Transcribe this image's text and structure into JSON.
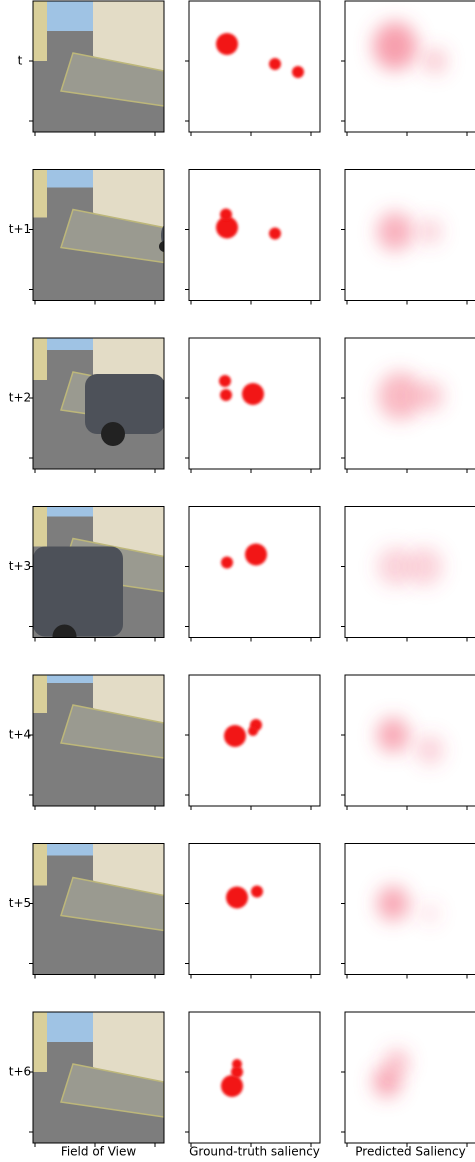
{
  "row_labels": [
    "t",
    "t+1",
    "t+2",
    "t+3",
    "t+4",
    "t+5",
    "t+6"
  ],
  "column_labels": [
    "Field of View",
    "Ground-truth saliency",
    "Predicted Saliency"
  ]
}
